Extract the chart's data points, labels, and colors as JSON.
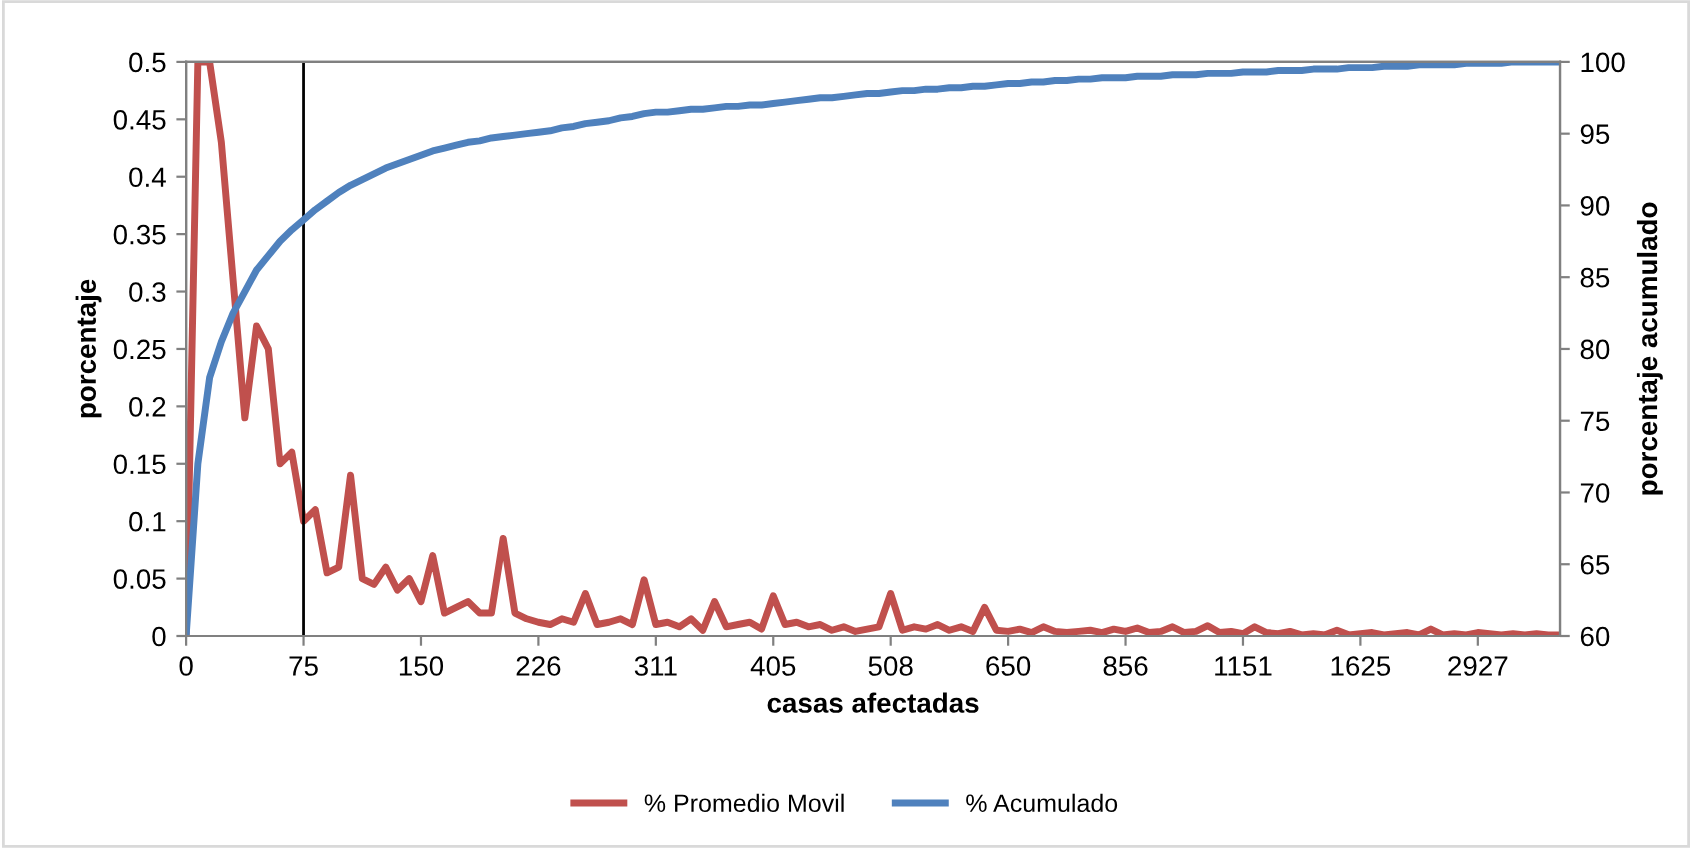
{
  "chart_data": {
    "type": "line",
    "xlabel": "casas afectadas",
    "ylabel": "porcentaje",
    "y2label": "porcentaje acumulado",
    "categories": [
      "0",
      null,
      null,
      null,
      null,
      null,
      null,
      null,
      null,
      null,
      "75",
      null,
      null,
      null,
      null,
      null,
      null,
      null,
      null,
      null,
      "150",
      null,
      null,
      null,
      null,
      null,
      null,
      null,
      null,
      null,
      "226",
      null,
      null,
      null,
      null,
      null,
      null,
      null,
      null,
      null,
      "311",
      null,
      null,
      null,
      null,
      null,
      null,
      null,
      null,
      null,
      "405",
      null,
      null,
      null,
      null,
      null,
      null,
      null,
      null,
      null,
      "508",
      null,
      null,
      null,
      null,
      null,
      null,
      null,
      null,
      null,
      "650",
      null,
      null,
      null,
      null,
      null,
      null,
      null,
      null,
      null,
      "856",
      null,
      null,
      null,
      null,
      null,
      null,
      null,
      null,
      null,
      "1151",
      null,
      null,
      null,
      null,
      null,
      null,
      null,
      null,
      null,
      "1625",
      null,
      null,
      null,
      null,
      null,
      null,
      null,
      null,
      null,
      "2927",
      null,
      null,
      null,
      null,
      null,
      null,
      null
    ],
    "series": [
      {
        "name": "% Promedio Movil",
        "color": "#c0504d",
        "values": [
          0,
          0.5,
          0.5,
          0.43,
          0.31,
          0.19,
          0.27,
          0.25,
          0.15,
          0.16,
          0.1,
          0.11,
          0.055,
          0.06,
          0.14,
          0.05,
          0.045,
          0.06,
          0.04,
          0.05,
          0.03,
          0.07,
          0.02,
          0.025,
          0.03,
          0.02,
          0.02,
          0.085,
          0.02,
          0.015,
          0.012,
          0.01,
          0.015,
          0.012,
          0.037,
          0.01,
          0.012,
          0.015,
          0.01,
          0.049,
          0.01,
          0.012,
          0.008,
          0.015,
          0.005,
          0.03,
          0.008,
          0.01,
          0.012,
          0.006,
          0.035,
          0.01,
          0.012,
          0.008,
          0.01,
          0.005,
          0.008,
          0.004,
          0.006,
          0.008,
          0.037,
          0.005,
          0.008,
          0.006,
          0.01,
          0.005,
          0.008,
          0.004,
          0.025,
          0.005,
          0.004,
          0.006,
          0.003,
          0.008,
          0.004,
          0.003,
          0.004,
          0.005,
          0.003,
          0.006,
          0.004,
          0.007,
          0.003,
          0.004,
          0.008,
          0.003,
          0.004,
          0.009,
          0.003,
          0.004,
          0.002,
          0.008,
          0.003,
          0.002,
          0.004,
          0.001,
          0.002,
          0.001,
          0.005,
          0.001,
          0.002,
          0.003,
          0.001,
          0.002,
          0.003,
          0.001,
          0.006,
          0.001,
          0.002,
          0.001,
          0.003,
          0.002,
          0.001,
          0.002,
          0.001,
          0.002,
          0.001,
          0.001
        ]
      },
      {
        "name": "% Acumulado",
        "color": "#4f81bd",
        "axis": "y2",
        "values": [
          60,
          72,
          78,
          80.5,
          82.5,
          84,
          85.5,
          86.5,
          87.5,
          88.3,
          89,
          89.7,
          90.3,
          90.9,
          91.4,
          91.8,
          92.2,
          92.6,
          92.9,
          93.2,
          93.5,
          93.8,
          94,
          94.2,
          94.4,
          94.5,
          94.7,
          94.8,
          94.9,
          95,
          95.1,
          95.2,
          95.4,
          95.5,
          95.7,
          95.8,
          95.9,
          96.1,
          96.2,
          96.4,
          96.5,
          96.5,
          96.6,
          96.7,
          96.7,
          96.8,
          96.9,
          96.9,
          97,
          97,
          97.1,
          97.2,
          97.3,
          97.4,
          97.5,
          97.5,
          97.6,
          97.7,
          97.8,
          97.8,
          97.9,
          98,
          98,
          98.1,
          98.1,
          98.2,
          98.2,
          98.3,
          98.3,
          98.4,
          98.5,
          98.5,
          98.6,
          98.6,
          98.7,
          98.7,
          98.8,
          98.8,
          98.9,
          98.9,
          98.9,
          99,
          99,
          99,
          99.1,
          99.1,
          99.1,
          99.2,
          99.2,
          99.2,
          99.3,
          99.3,
          99.3,
          99.4,
          99.4,
          99.4,
          99.5,
          99.5,
          99.5,
          99.6,
          99.6,
          99.6,
          99.7,
          99.7,
          99.7,
          99.8,
          99.8,
          99.8,
          99.8,
          99.9,
          99.9,
          99.9,
          99.9,
          100,
          100,
          100,
          100,
          100
        ]
      }
    ],
    "ylim": [
      0,
      0.5
    ],
    "yticks": [
      0,
      0.05,
      0.1,
      0.15,
      0.2,
      0.25,
      0.3,
      0.35,
      0.4,
      0.45,
      0.5
    ],
    "y2lim": [
      60,
      100
    ],
    "y2ticks": [
      60,
      65,
      70,
      75,
      80,
      85,
      90,
      95,
      100
    ],
    "ref_lines": [
      {
        "axis": "x",
        "value": "75",
        "color": "#000000"
      }
    ],
    "grid": false,
    "legend": "bottom",
    "marker": "none",
    "line_style": "solid"
  }
}
